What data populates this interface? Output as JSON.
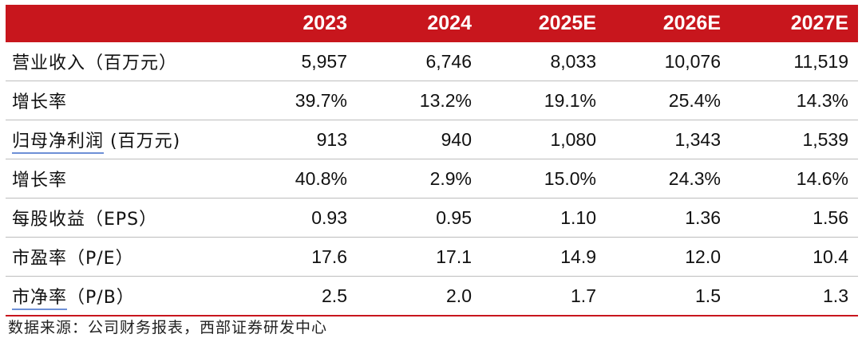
{
  "table": {
    "header": [
      "",
      "2023",
      "2024",
      "2025E",
      "2026E",
      "2027E"
    ],
    "rows": [
      {
        "label": "营业收入（百万元）",
        "values": [
          "5,957",
          "6,746",
          "8,033",
          "10,076",
          "11,519"
        ]
      },
      {
        "label": "增长率",
        "values": [
          "39.7%",
          "13.2%",
          "19.1%",
          "25.4%",
          "14.3%"
        ]
      },
      {
        "label_main": "归母净利润",
        "label_rest": " (百万元)",
        "values": [
          "913",
          "940",
          "1,080",
          "1,343",
          "1,539"
        ]
      },
      {
        "label": "增长率",
        "values": [
          "40.8%",
          "2.9%",
          "15.0%",
          "24.3%",
          "14.6%"
        ]
      },
      {
        "label": "每股收益（EPS）",
        "values": [
          "0.93",
          "0.95",
          "1.10",
          "1.36",
          "1.56"
        ]
      },
      {
        "label": "市盈率（P/E）",
        "values": [
          "17.6",
          "17.1",
          "14.9",
          "12.0",
          "10.4"
        ]
      },
      {
        "label_main": "市净率",
        "label_rest": "（P/B）",
        "values": [
          "2.5",
          "2.0",
          "1.7",
          "1.5",
          "1.3"
        ]
      }
    ]
  },
  "source": "数据来源：公司财务报表，西部证券研发中心",
  "colors": {
    "header_bg": "#c8161d",
    "header_text": "#ffffff",
    "underline": "#6d8fd6"
  }
}
